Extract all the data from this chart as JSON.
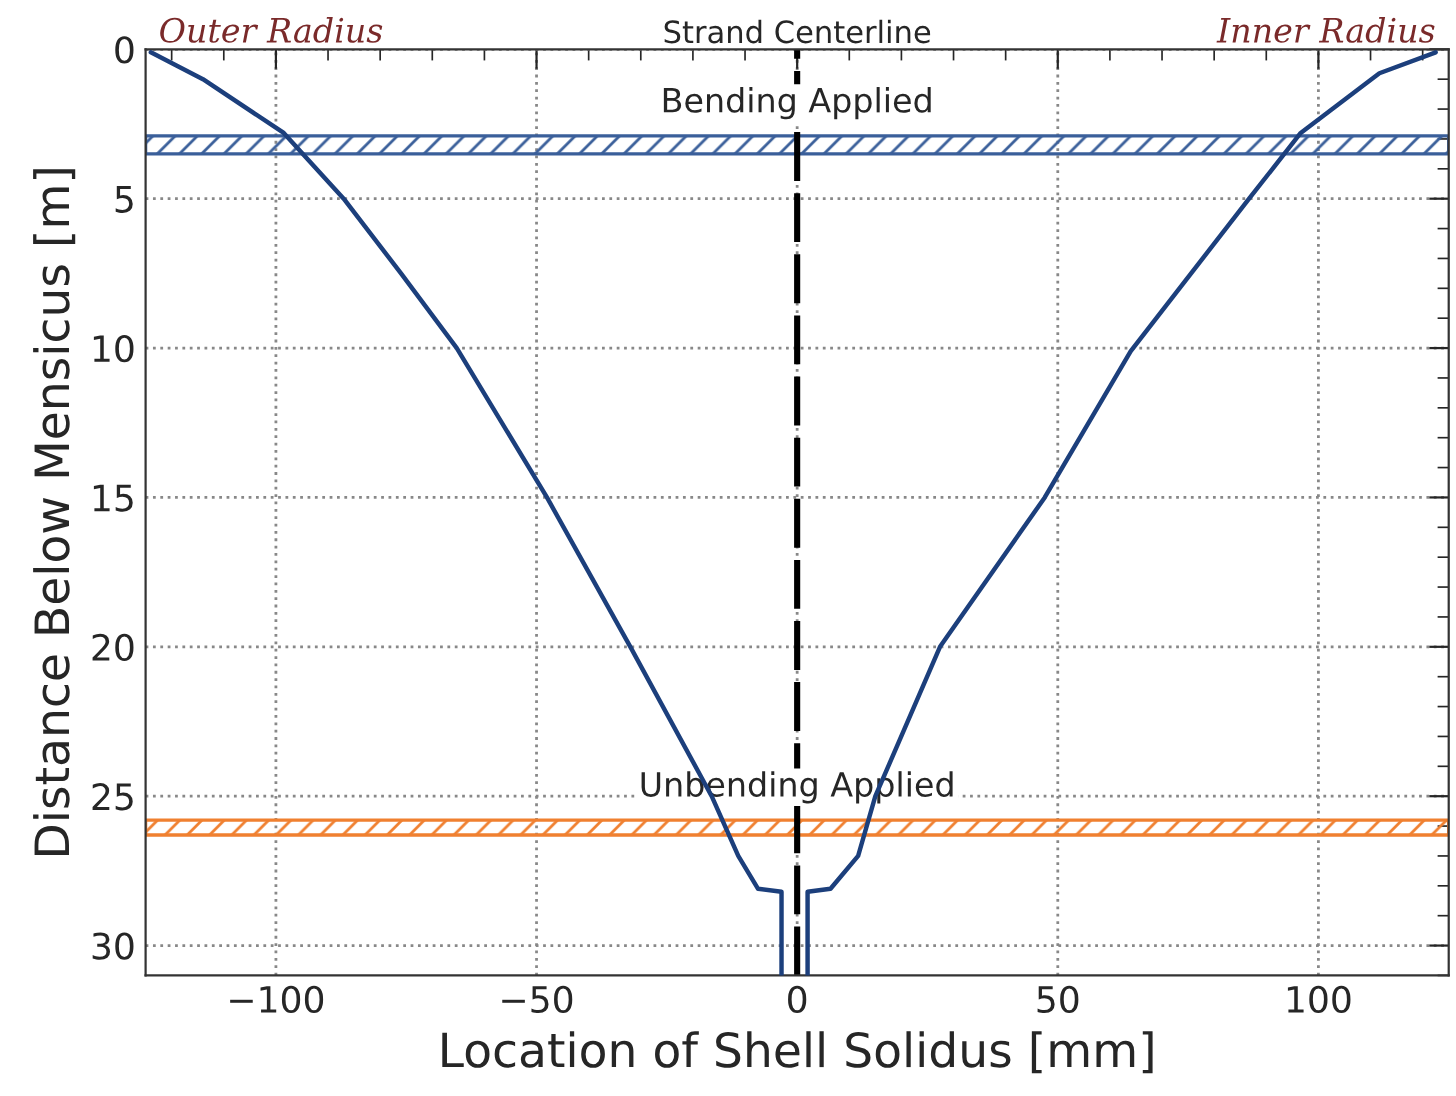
{
  "chart_data": {
    "type": "line",
    "xlabel": "Location of Shell Solidus [mm]",
    "ylabel": "Distance Below Mensicus [m]",
    "series": [
      {
        "color": "#1c3f7c",
        "x": [
          -124,
          -114,
          -98.5,
          -87,
          -76,
          -65.3,
          -48,
          -32,
          -16.4,
          -11.3,
          -7.5,
          -3,
          -3
        ],
        "values": [
          0.1,
          1.0,
          2.8,
          5,
          7.5,
          10,
          15,
          20,
          25,
          27,
          28.1,
          28.2,
          31
        ]
      },
      {
        "color": "#1c3f7c",
        "x": [
          122.5,
          111.7,
          96.6,
          86.7,
          64,
          47.5,
          27.4,
          15,
          11.7,
          6.4,
          2,
          2
        ],
        "values": [
          0.1,
          0.8,
          2.8,
          5,
          10.1,
          15,
          20,
          25,
          27,
          28.1,
          28.2,
          31
        ]
      }
    ],
    "xlim": [
      -125,
      125
    ],
    "ylim": [
      31,
      0
    ],
    "xticks": [
      {
        "value": -100,
        "label": "−100"
      },
      {
        "value": -50,
        "label": "−50"
      },
      0,
      50,
      100
    ],
    "yticks": [
      0,
      5,
      10,
      15,
      20,
      25,
      30
    ],
    "ref_lines": [
      {
        "axis": "x",
        "value": 0,
        "label": "Strand Centerline",
        "color": "#000000",
        "line_style": "dashed"
      }
    ],
    "bands": [
      {
        "axis": "y",
        "from": 2.9,
        "to": 3.5,
        "label": "Bending Applied",
        "color": "#3a5f9a"
      },
      {
        "axis": "y",
        "from": 25.8,
        "to": 26.3,
        "label": "Unbending Applied",
        "color": "#f08030"
      }
    ],
    "annotations": [
      "Outer Radius",
      "Inner Radius"
    ],
    "grid": true,
    "marker": "none",
    "line_style": "solid",
    "legend": false
  }
}
